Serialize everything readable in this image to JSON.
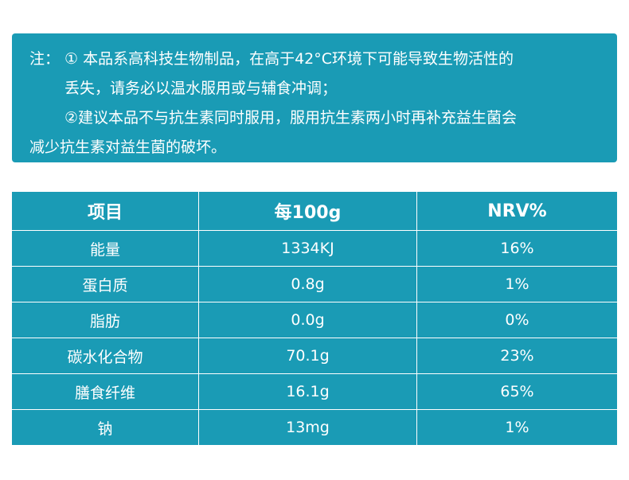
{
  "note": {
    "prefix": "注：",
    "lines": [
      "① 本品系高科技生物制品，在高于42°C环境下可能导致生物活性的",
      "丢失，请务必以温水服用或与辅食冲调；",
      "②建议本品不与抗生素同时服用，服用抗生素两小时再补充益生菌会",
      "减少抗生素对益生菌的破坏。"
    ]
  },
  "table": {
    "headers": [
      "项目",
      "每100g",
      "NRV%"
    ],
    "rows": [
      [
        "能量",
        "1334KJ",
        "16%"
      ],
      [
        "蛋白质",
        "0.8g",
        "1%"
      ],
      [
        "脂肪",
        "0.0g",
        "0%"
      ],
      [
        "碳水化合物",
        "70.1g",
        "23%"
      ],
      [
        "膳食纤维",
        "16.1g",
        "65%"
      ],
      [
        "钠",
        "13mg",
        "1%"
      ]
    ]
  },
  "colors": {
    "accent": "#1a9bb5",
    "text": "#ffffff"
  }
}
